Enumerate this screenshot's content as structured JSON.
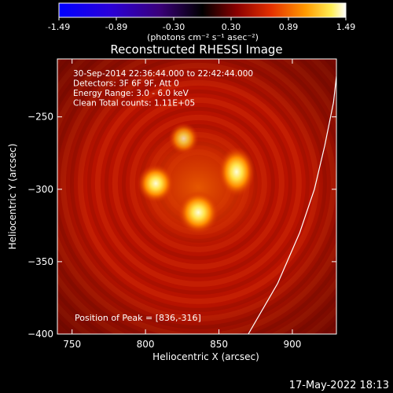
{
  "chart_data": {
    "type": "heatmap",
    "title": "Reconstructed RHESSI Image",
    "xlabel": "Heliocentric X (arcsec)",
    "ylabel": "Heliocentric Y (arcsec)",
    "xlim": [
      740,
      930
    ],
    "ylim": [
      -400,
      -210
    ],
    "xticks": [
      750,
      800,
      850,
      900
    ],
    "yticks": [
      -250,
      -300,
      -350,
      -400
    ],
    "colorbar": {
      "ticks": [
        "-1.49",
        "-0.89",
        "-0.30",
        "0.30",
        "0.89",
        "1.49"
      ],
      "range": [
        -1.49,
        1.49
      ],
      "unit_label": "(photons cm⁻² s⁻¹ asec⁻²)",
      "colormap": "RHESSI red-temperature"
    },
    "annotations": [
      "30-Sep-2014 22:36:44.000 to 22:42:44.000",
      "Detectors: 3F 6F 9F, Att 0",
      "Energy Range: 3.0 - 6.0 keV",
      "Clean     Total counts: 1.11E+05"
    ],
    "peak_label": "Position of Peak = [836,-316]",
    "sources": [
      {
        "x": 836,
        "y": -316,
        "intensity": 1.49
      },
      {
        "x": 807,
        "y": -296,
        "intensity": 1.2
      },
      {
        "x": 862,
        "y": -288,
        "intensity": 1.22
      },
      {
        "x": 826,
        "y": -265,
        "intensity": 0.75
      }
    ],
    "limb_curve": [
      [
        870,
        -400
      ],
      [
        890,
        -365
      ],
      [
        905,
        -330
      ],
      [
        915,
        -300
      ],
      [
        922,
        -270
      ],
      [
        928,
        -240
      ],
      [
        930,
        -222
      ]
    ],
    "background_color": "#b81200",
    "limb_color": "#ffffff"
  },
  "footer": {
    "timestamp": "17-May-2022 18:13"
  }
}
